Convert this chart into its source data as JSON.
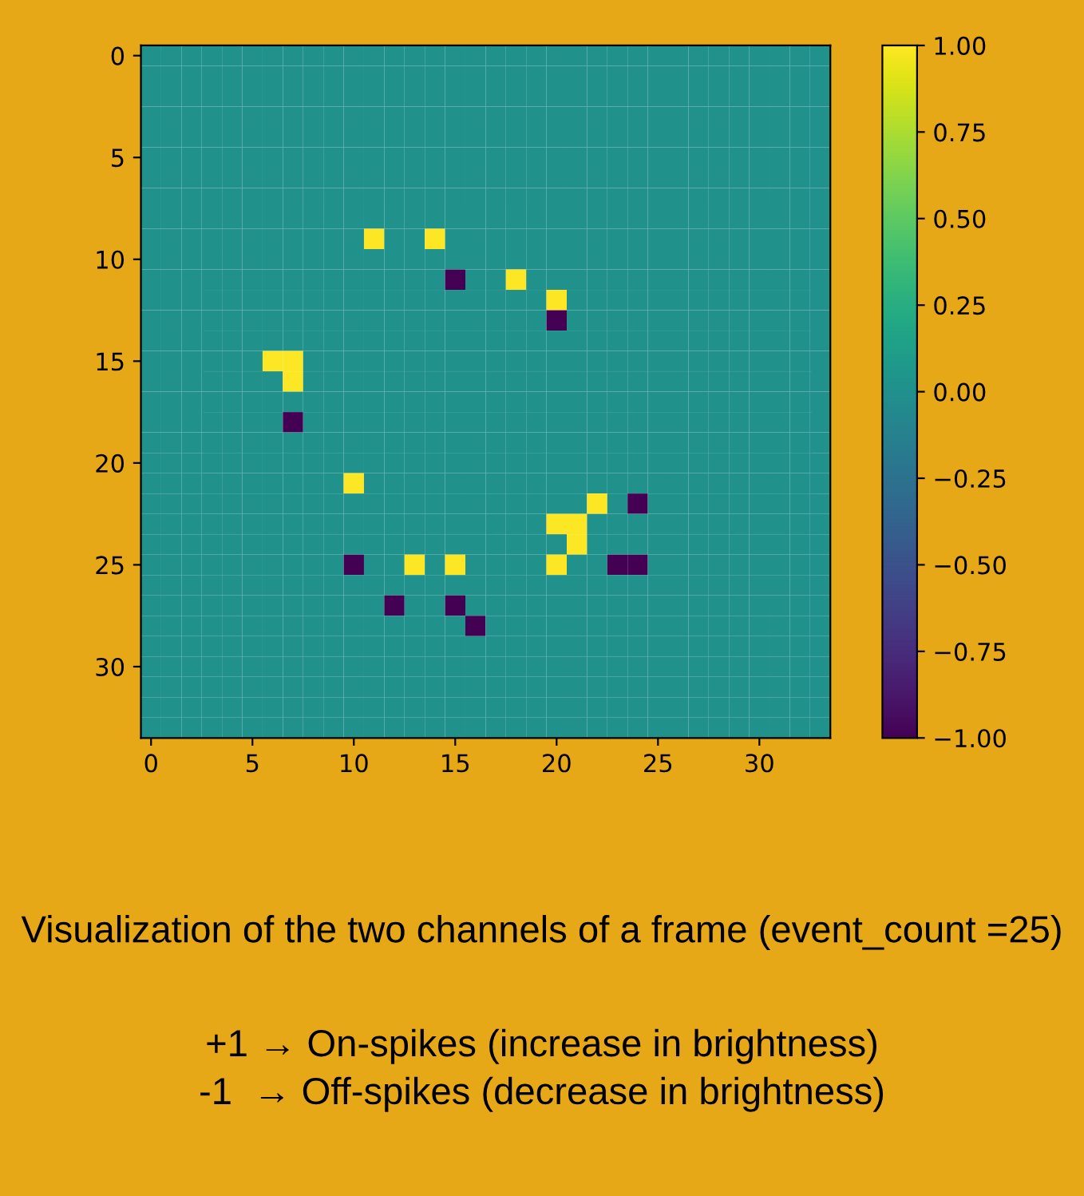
{
  "chart_data": {
    "type": "heatmap",
    "categories": [
      "0",
      null,
      null,
      null,
      null,
      "5",
      null,
      null,
      null,
      null,
      "10",
      null,
      null,
      null,
      null,
      "15",
      null,
      null,
      null,
      null,
      "20",
      null,
      null,
      null,
      null,
      "25",
      null,
      null,
      null,
      null,
      "30",
      null,
      null,
      null
    ],
    "y_categories": [
      "0",
      null,
      null,
      null,
      null,
      "5",
      null,
      null,
      null,
      null,
      "10",
      null,
      null,
      null,
      null,
      "15",
      null,
      null,
      null,
      null,
      "20",
      null,
      null,
      null,
      null,
      "25",
      null,
      null,
      null,
      null,
      "30",
      null,
      null,
      null
    ],
    "cells": [
      [
        0,
        0,
        0,
        0,
        0,
        0,
        0,
        0,
        0,
        0,
        0,
        0,
        0,
        0,
        0,
        0,
        0,
        0,
        0,
        0,
        0,
        0,
        0,
        0,
        0,
        0,
        0,
        0,
        0,
        0,
        0,
        0,
        0,
        0
      ],
      [
        0,
        0,
        0,
        0,
        0,
        0,
        0,
        0,
        0,
        0,
        0,
        0,
        0,
        0,
        0,
        0,
        0,
        0,
        0,
        0,
        0,
        0,
        0,
        0,
        0,
        0,
        0,
        0,
        0,
        0,
        0,
        0,
        0,
        0
      ],
      [
        0,
        0,
        0,
        0,
        0,
        0,
        0,
        0,
        0,
        0,
        0,
        0,
        0,
        0,
        0,
        0,
        0,
        0,
        0,
        0,
        0,
        0,
        0,
        0,
        0,
        0,
        0,
        0,
        0,
        0,
        0,
        0,
        0,
        0
      ],
      [
        0,
        0,
        0,
        0,
        0,
        0,
        0,
        0,
        0,
        0,
        0,
        0,
        0,
        0,
        0,
        0,
        0,
        0,
        0,
        0,
        0,
        0,
        0,
        0,
        0,
        0,
        0,
        0,
        0,
        0,
        0,
        0,
        0,
        0
      ],
      [
        0,
        0,
        0,
        0,
        0,
        0,
        0,
        0,
        0,
        0,
        0,
        0,
        0,
        0,
        0,
        0,
        0,
        0,
        0,
        0,
        0,
        0,
        0,
        0,
        0,
        0,
        0,
        0,
        0,
        0,
        0,
        0,
        0,
        0
      ],
      [
        0,
        0,
        0,
        0,
        0,
        0,
        0,
        0,
        0,
        0,
        0,
        0,
        0,
        0,
        0,
        0,
        0,
        0,
        0,
        0,
        0,
        0,
        0,
        0,
        0,
        0,
        0,
        0,
        0,
        0,
        0,
        0,
        0,
        0
      ],
      [
        0,
        0,
        0,
        0,
        0,
        0,
        0,
        0,
        0,
        0,
        0,
        0,
        0,
        0,
        0,
        0,
        0,
        0,
        0,
        0,
        0,
        0,
        0,
        0,
        0,
        0,
        0,
        0,
        0,
        0,
        0,
        0,
        0,
        0
      ],
      [
        0,
        0,
        0,
        0,
        0,
        0,
        0,
        0,
        0,
        0,
        0,
        0,
        0,
        0,
        0,
        0,
        0,
        0,
        0,
        0,
        0,
        0,
        0,
        0,
        0,
        0,
        0,
        0,
        0,
        0,
        0,
        0,
        0,
        0
      ],
      [
        0,
        0,
        0,
        0,
        0,
        0,
        0,
        0,
        0,
        0,
        0,
        0,
        0,
        0,
        0,
        0,
        0,
        0,
        0,
        0,
        0,
        0,
        0,
        0,
        0,
        0,
        0,
        0,
        0,
        0,
        0,
        0,
        0,
        0
      ],
      [
        0,
        0,
        0,
        0,
        0,
        0,
        0,
        0,
        0,
        0,
        0,
        1,
        0,
        0,
        1,
        0,
        0,
        0,
        0,
        0,
        0,
        0,
        0,
        0,
        0,
        0,
        0,
        0,
        0,
        0,
        0,
        0,
        0,
        0
      ],
      [
        0,
        0,
        0,
        0,
        0,
        0,
        0,
        0,
        0,
        0,
        0,
        0,
        0,
        0,
        0,
        0,
        0,
        0,
        0,
        0,
        0,
        0,
        0,
        0,
        0,
        0,
        0,
        0,
        0,
        0,
        0,
        0,
        0,
        0
      ],
      [
        0,
        0,
        0,
        0,
        0,
        0,
        0,
        0,
        0,
        0,
        0,
        0,
        0,
        0,
        0,
        -1,
        0,
        0,
        1,
        0,
        0,
        0,
        0,
        0,
        0,
        0,
        0,
        0,
        0,
        0,
        0,
        0,
        0,
        0
      ],
      [
        0,
        0,
        0,
        0,
        0,
        0,
        0,
        0,
        0,
        0,
        0,
        0,
        0,
        0,
        0,
        0,
        0,
        0,
        0,
        0,
        1,
        0,
        0,
        0,
        0,
        0,
        0,
        0,
        0,
        0,
        0,
        0,
        0,
        0
      ],
      [
        0,
        0,
        0,
        0,
        0,
        0,
        0,
        0,
        0,
        0,
        0,
        0,
        0,
        0,
        0,
        0,
        0,
        0,
        0,
        0,
        -1,
        0,
        0,
        0,
        0,
        0,
        0,
        0,
        0,
        0,
        0,
        0,
        0,
        0
      ],
      [
        0,
        0,
        0,
        0,
        0,
        0,
        0,
        0,
        0,
        0,
        0,
        0,
        0,
        0,
        0,
        0,
        0,
        0,
        0,
        0,
        0,
        0,
        0,
        0,
        0,
        0,
        0,
        0,
        0,
        0,
        0,
        0,
        0,
        0
      ],
      [
        0,
        0,
        0,
        0,
        0,
        0,
        1,
        1,
        0,
        0,
        0,
        0,
        0,
        0,
        0,
        0,
        0,
        0,
        0,
        0,
        0,
        0,
        0,
        0,
        0,
        0,
        0,
        0,
        0,
        0,
        0,
        0,
        0,
        0
      ],
      [
        0,
        0,
        0,
        0,
        0,
        0,
        0,
        1,
        0,
        0,
        0,
        0,
        0,
        0,
        0,
        0,
        0,
        0,
        0,
        0,
        0,
        0,
        0,
        0,
        0,
        0,
        0,
        0,
        0,
        0,
        0,
        0,
        0,
        0
      ],
      [
        0,
        0,
        0,
        0,
        0,
        0,
        0,
        0,
        0,
        0,
        0,
        0,
        0,
        0,
        0,
        0,
        0,
        0,
        0,
        0,
        0,
        0,
        0,
        0,
        0,
        0,
        0,
        0,
        0,
        0,
        0,
        0,
        0,
        0
      ],
      [
        0,
        0,
        0,
        0,
        0,
        0,
        0,
        -1,
        0,
        0,
        0,
        0,
        0,
        0,
        0,
        0,
        0,
        0,
        0,
        0,
        0,
        0,
        0,
        0,
        0,
        0,
        0,
        0,
        0,
        0,
        0,
        0,
        0,
        0
      ],
      [
        0,
        0,
        0,
        0,
        0,
        0,
        0,
        0,
        0,
        0,
        0,
        0,
        0,
        0,
        0,
        0,
        0,
        0,
        0,
        0,
        0,
        0,
        0,
        0,
        0,
        0,
        0,
        0,
        0,
        0,
        0,
        0,
        0,
        0
      ],
      [
        0,
        0,
        0,
        0,
        0,
        0,
        0,
        0,
        0,
        0,
        0,
        0,
        0,
        0,
        0,
        0,
        0,
        0,
        0,
        0,
        0,
        0,
        0,
        0,
        0,
        0,
        0,
        0,
        0,
        0,
        0,
        0,
        0,
        0
      ],
      [
        0,
        0,
        0,
        0,
        0,
        0,
        0,
        0,
        0,
        0,
        1,
        0,
        0,
        0,
        0,
        0,
        0,
        0,
        0,
        0,
        0,
        0,
        0,
        0,
        0,
        0,
        0,
        0,
        0,
        0,
        0,
        0,
        0,
        0
      ],
      [
        0,
        0,
        0,
        0,
        0,
        0,
        0,
        0,
        0,
        0,
        0,
        0,
        0,
        0,
        0,
        0,
        0,
        0,
        0,
        0,
        0,
        0,
        1,
        0,
        -1,
        0,
        0,
        0,
        0,
        0,
        0,
        0,
        0,
        0
      ],
      [
        0,
        0,
        0,
        0,
        0,
        0,
        0,
        0,
        0,
        0,
        0,
        0,
        0,
        0,
        0,
        0,
        0,
        0,
        0,
        0,
        1,
        1,
        0,
        0,
        0,
        0,
        0,
        0,
        0,
        0,
        0,
        0,
        0,
        0
      ],
      [
        0,
        0,
        0,
        0,
        0,
        0,
        0,
        0,
        0,
        0,
        0,
        0,
        0,
        0,
        0,
        0,
        0,
        0,
        0,
        0,
        0,
        1,
        0,
        0,
        0,
        0,
        0,
        0,
        0,
        0,
        0,
        0,
        0,
        0
      ],
      [
        0,
        0,
        0,
        0,
        0,
        0,
        0,
        0,
        0,
        0,
        -1,
        0,
        0,
        1,
        0,
        1,
        0,
        0,
        0,
        0,
        1,
        0,
        0,
        -1,
        -1,
        0,
        0,
        0,
        0,
        0,
        0,
        0,
        0,
        0
      ],
      [
        0,
        0,
        0,
        0,
        0,
        0,
        0,
        0,
        0,
        0,
        0,
        0,
        0,
        0,
        0,
        0,
        0,
        0,
        0,
        0,
        0,
        0,
        0,
        0,
        0,
        0,
        0,
        0,
        0,
        0,
        0,
        0,
        0,
        0
      ],
      [
        0,
        0,
        0,
        0,
        0,
        0,
        0,
        0,
        0,
        0,
        0,
        0,
        -1,
        0,
        0,
        -1,
        0,
        0,
        0,
        0,
        0,
        0,
        0,
        0,
        0,
        0,
        0,
        0,
        0,
        0,
        0,
        0,
        0,
        0
      ],
      [
        0,
        0,
        0,
        0,
        0,
        0,
        0,
        0,
        0,
        0,
        0,
        0,
        0,
        0,
        0,
        0,
        -1,
        0,
        0,
        0,
        0,
        0,
        0,
        0,
        0,
        0,
        0,
        0,
        0,
        0,
        0,
        0,
        0,
        0
      ],
      [
        0,
        0,
        0,
        0,
        0,
        0,
        0,
        0,
        0,
        0,
        0,
        0,
        0,
        0,
        0,
        0,
        0,
        0,
        0,
        0,
        0,
        0,
        0,
        0,
        0,
        0,
        0,
        0,
        0,
        0,
        0,
        0,
        0,
        0
      ],
      [
        0,
        0,
        0,
        0,
        0,
        0,
        0,
        0,
        0,
        0,
        0,
        0,
        0,
        0,
        0,
        0,
        0,
        0,
        0,
        0,
        0,
        0,
        0,
        0,
        0,
        0,
        0,
        0,
        0,
        0,
        0,
        0,
        0,
        0
      ],
      [
        0,
        0,
        0,
        0,
        0,
        0,
        0,
        0,
        0,
        0,
        0,
        0,
        0,
        0,
        0,
        0,
        0,
        0,
        0,
        0,
        0,
        0,
        0,
        0,
        0,
        0,
        0,
        0,
        0,
        0,
        0,
        0,
        0,
        0
      ],
      [
        0,
        0,
        0,
        0,
        0,
        0,
        0,
        0,
        0,
        0,
        0,
        0,
        0,
        0,
        0,
        0,
        0,
        0,
        0,
        0,
        0,
        0,
        0,
        0,
        0,
        0,
        0,
        0,
        0,
        0,
        0,
        0,
        0,
        0
      ],
      [
        0,
        0,
        0,
        0,
        0,
        0,
        0,
        0,
        0,
        0,
        0,
        0,
        0,
        0,
        0,
        0,
        0,
        0,
        0,
        0,
        0,
        0,
        0,
        0,
        0,
        0,
        0,
        0,
        0,
        0,
        0,
        0,
        0,
        0
      ]
    ],
    "clim": [
      -1,
      1
    ],
    "cticks": [
      {
        "value": 1,
        "label": "1.00"
      },
      {
        "value": 0.75,
        "label": "0.75"
      },
      {
        "value": 0.5,
        "label": "0.50"
      },
      {
        "value": 0.25,
        "label": "0.25"
      },
      {
        "value": 0,
        "label": "0.00"
      },
      {
        "value": -0.25,
        "label": "−0.25"
      },
      {
        "value": -0.5,
        "label": "−0.50"
      },
      {
        "value": -0.75,
        "label": "−0.75"
      },
      {
        "value": -1,
        "label": "−1.00"
      }
    ],
    "annotations": [
      "Visualization of the two channels of a frame (event_count =25)",
      "+1 → On-spikes (increase in brightness)",
      "-1  → Off-spikes (decrease in brightness)"
    ]
  }
}
